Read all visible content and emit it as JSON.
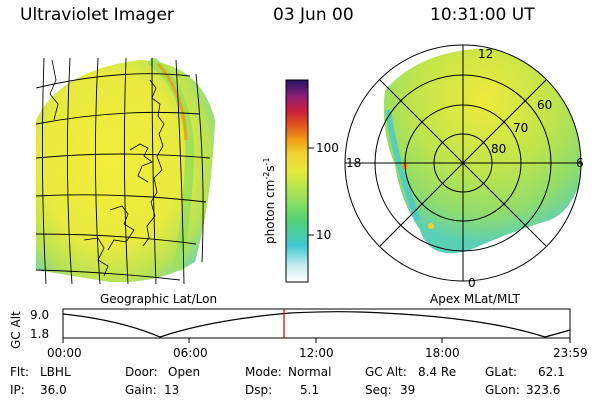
{
  "header": {
    "instrument": "Ultraviolet Imager",
    "date": "03 Jun 00",
    "time": "10:31:00 UT"
  },
  "panels": {
    "geo_label": "Geographic Lat/Lon",
    "mag_label": "Apex MLat/MLT"
  },
  "colorbar": {
    "unit_label": "photon cm",
    "unit_sup1": "-2",
    "unit_mid": "s",
    "unit_sup2": "-1",
    "ticks": [
      "100",
      "10"
    ],
    "scale": "log"
  },
  "polar_plot": {
    "mlt_labels": [
      "12",
      "18",
      "6",
      "0"
    ],
    "mlat_labels": [
      "60",
      "70",
      "80"
    ]
  },
  "altitude_plot": {
    "ylabel": "GC Alt",
    "ytick_top": "9.0",
    "ytick_bottom": "1.8",
    "xticks": [
      "00:00",
      "06:00",
      "12:00",
      "18:00",
      "23:59"
    ],
    "marker_time": "10:31"
  },
  "info": {
    "filter_label": "Flt:",
    "filter_value": "LBHL",
    "door_label": "Door:",
    "door_value": "Open",
    "mode_label": "Mode:",
    "mode_value": "Normal",
    "gcalt_label": "GC Alt:",
    "gcalt_value": "8.4 Re",
    "glat_label": "GLat:",
    "glat_value": "62.1",
    "ip_label": "IP:",
    "ip_value": "36.0",
    "gain_label": "Gain:",
    "gain_value": "13",
    "dsp_label": "Dsp:",
    "dsp_value": "5.1",
    "seq_label": "Seq:",
    "seq_value": "39",
    "glon_label": "GLon:",
    "glon_value": "323.6"
  },
  "colors": {
    "auroral_green": "#9be05a",
    "background_yellow": "#f0ec3c",
    "cyan": "#41c8d2",
    "orange": "#f0a014",
    "red": "#d21e1e",
    "marker_red": "#cc0000"
  }
}
